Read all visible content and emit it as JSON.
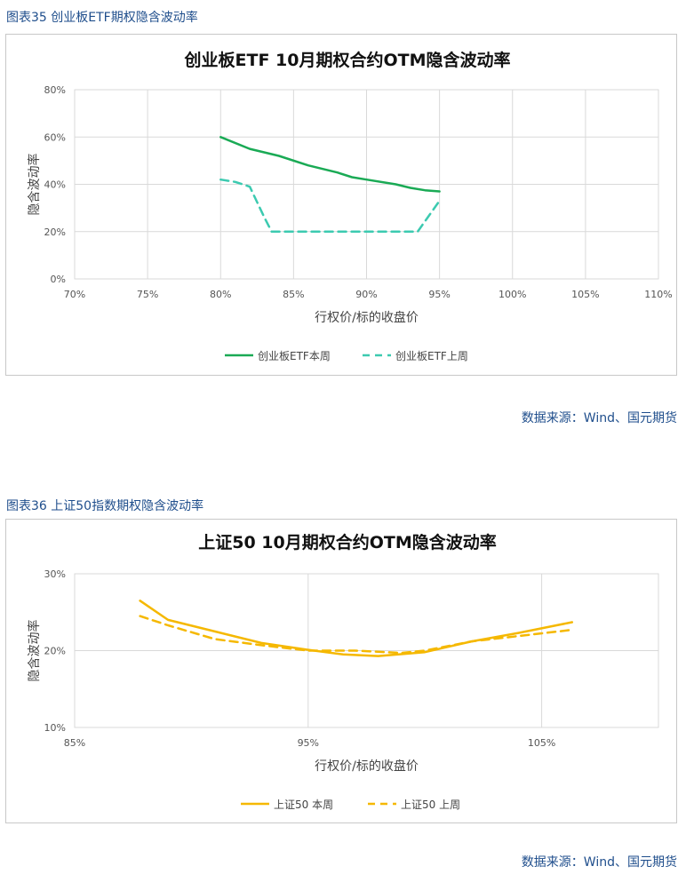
{
  "figures": [
    {
      "caption": "图表35 创业板ETF期权隐含波动率",
      "source": "数据来源：Wind、国元期货"
    },
    {
      "caption": "图表36 上证50指数期权隐含波动率",
      "source": "数据来源：Wind、国元期货"
    }
  ],
  "colors": {
    "caption_text": "#1f4e8c",
    "chart1_series1": "#1aaa55",
    "chart1_series2": "#3ccab0",
    "chart2_series1": "#f5b800",
    "chart2_series2": "#f5b800",
    "grid": "#d9d9d9"
  },
  "chart_data": [
    {
      "type": "line",
      "title": "创业板ETF 10月期权合约OTM隐含波动率",
      "xlabel": "行权价/标的收盘价",
      "ylabel": "隐含波动率",
      "xlim": [
        0.7,
        1.1
      ],
      "ylim": [
        0,
        0.8
      ],
      "xticks": [
        0.7,
        0.75,
        0.8,
        0.85,
        0.9,
        0.95,
        1.0,
        1.05,
        1.1
      ],
      "xtick_labels": [
        "70%",
        "75%",
        "80%",
        "85%",
        "90%",
        "95%",
        "100%",
        "105%",
        "110%"
      ],
      "yticks": [
        0,
        0.2,
        0.4,
        0.6,
        0.8
      ],
      "ytick_labels": [
        "0%",
        "20%",
        "40%",
        "60%",
        "80%"
      ],
      "grid": true,
      "legend": "bottom",
      "series": [
        {
          "name": "创业板ETF本周",
          "style": "solid",
          "x": [
            0.8,
            0.82,
            0.84,
            0.86,
            0.88,
            0.89,
            0.9,
            0.92,
            0.93,
            0.94,
            0.95
          ],
          "y": [
            0.6,
            0.55,
            0.52,
            0.48,
            0.45,
            0.43,
            0.42,
            0.4,
            0.385,
            0.375,
            0.37
          ]
        },
        {
          "name": "创业板ETF上周",
          "style": "dashed",
          "x": [
            0.8,
            0.81,
            0.82,
            0.83,
            0.835,
            0.85,
            0.87,
            0.89,
            0.91,
            0.93,
            0.935,
            0.95
          ],
          "y": [
            0.42,
            0.41,
            0.39,
            0.26,
            0.2,
            0.2,
            0.2,
            0.2,
            0.2,
            0.2,
            0.2,
            0.33
          ]
        }
      ]
    },
    {
      "type": "line",
      "title": "上证50 10月期权合约OTM隐含波动率",
      "xlabel": "行权价/标的收盘价",
      "ylabel": "隐含波动率",
      "xlim": [
        0.85,
        1.1
      ],
      "ylim": [
        0.1,
        0.3
      ],
      "xticks": [
        0.85,
        0.95,
        1.05
      ],
      "xtick_labels": [
        "85%",
        "95%",
        "105%"
      ],
      "yticks": [
        0.1,
        0.2,
        0.3
      ],
      "ytick_labels": [
        "10%",
        "20%",
        "30%"
      ],
      "grid": true,
      "legend": "bottom",
      "series": [
        {
          "name": "上证50 本周",
          "style": "solid",
          "x": [
            0.878,
            0.89,
            0.91,
            0.93,
            0.95,
            0.965,
            0.98,
            1.0,
            1.02,
            1.04,
            1.063
          ],
          "y": [
            0.265,
            0.24,
            0.225,
            0.21,
            0.201,
            0.195,
            0.193,
            0.198,
            0.212,
            0.223,
            0.237
          ]
        },
        {
          "name": "上证50 上周",
          "style": "dashed",
          "x": [
            0.878,
            0.89,
            0.91,
            0.93,
            0.95,
            0.97,
            0.99,
            1.0,
            1.02,
            1.04,
            1.063
          ],
          "y": [
            0.245,
            0.233,
            0.215,
            0.207,
            0.2,
            0.2,
            0.197,
            0.2,
            0.212,
            0.219,
            0.227
          ]
        }
      ]
    }
  ]
}
